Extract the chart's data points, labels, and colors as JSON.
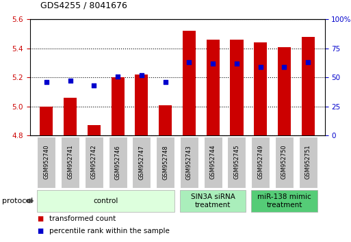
{
  "title": "GDS4255 / 8041676",
  "samples": [
    "GSM952740",
    "GSM952741",
    "GSM952742",
    "GSM952746",
    "GSM952747",
    "GSM952748",
    "GSM952743",
    "GSM952744",
    "GSM952745",
    "GSM952749",
    "GSM952750",
    "GSM952751"
  ],
  "transformed_count": [
    5.0,
    5.06,
    4.87,
    5.2,
    5.22,
    5.01,
    5.52,
    5.46,
    5.46,
    5.44,
    5.41,
    5.48
  ],
  "percentile_rank": [
    46,
    47,
    43,
    51,
    52,
    46,
    63,
    62,
    62,
    59,
    59,
    63
  ],
  "ylim_left": [
    4.8,
    5.6
  ],
  "ylim_right": [
    0,
    100
  ],
  "yticks_left": [
    4.8,
    5.0,
    5.2,
    5.4,
    5.6
  ],
  "yticks_right": [
    0,
    25,
    50,
    75,
    100
  ],
  "ytick_labels_right": [
    "0",
    "25",
    "50",
    "75",
    "100%"
  ],
  "bar_color": "#cc0000",
  "dot_color": "#0000cc",
  "bar_width": 0.55,
  "groups": [
    {
      "label": "control",
      "start": 0,
      "end": 5,
      "color": "#ddffdd"
    },
    {
      "label": "SIN3A siRNA\ntreatment",
      "start": 6,
      "end": 8,
      "color": "#aaeebb"
    },
    {
      "label": "miR-138 mimic\ntreatment",
      "start": 9,
      "end": 11,
      "color": "#55cc77"
    }
  ],
  "protocol_label": "protocol",
  "legend_items": [
    {
      "label": "transformed count",
      "color": "#cc0000"
    },
    {
      "label": "percentile rank within the sample",
      "color": "#0000cc"
    }
  ],
  "background_color": "#ffffff",
  "left_tick_color": "#cc0000",
  "right_tick_color": "#0000cc",
  "label_box_color": "#c8c8c8",
  "title_fontsize": 9,
  "tick_fontsize": 7.5,
  "sample_fontsize": 6.0,
  "group_fontsize": 7.5,
  "legend_fontsize": 7.5
}
